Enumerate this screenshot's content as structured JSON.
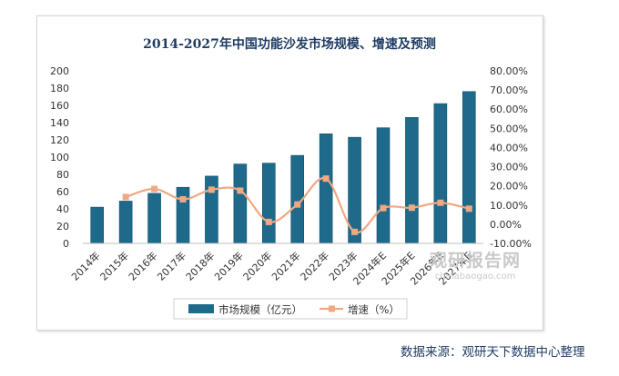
{
  "chart_data": {
    "type": "bar",
    "title": "2014-2027年中国功能沙发市场规模、增速及预测",
    "categories": [
      "2014年",
      "2015年",
      "2016年",
      "2017年",
      "2018年",
      "2019年",
      "2020年",
      "2021年",
      "2022年",
      "2023年",
      "2024年E",
      "2025年E",
      "2026年E",
      "2027年E"
    ],
    "series": [
      {
        "name": "市场规模（亿元）",
        "type": "bar",
        "axis": "left",
        "values": [
          42,
          49,
          58,
          65,
          78,
          92,
          93,
          102,
          127,
          123,
          134,
          146,
          162,
          176
        ]
      },
      {
        "name": "增速（%）",
        "type": "line",
        "axis": "right",
        "values": [
          null,
          14.2,
          18.4,
          13.0,
          18.0,
          17.5,
          1.2,
          10.3,
          23.8,
          -4.0,
          8.4,
          8.6,
          11.2,
          8.1
        ]
      }
    ],
    "left_axis": {
      "min": 0,
      "max": 200,
      "step": 20,
      "tick_labels": [
        "0",
        "20",
        "40",
        "60",
        "80",
        "100",
        "120",
        "140",
        "160",
        "180",
        "200"
      ]
    },
    "right_axis": {
      "min": -10,
      "max": 80,
      "step": 10,
      "tick_labels": [
        "-10.00%",
        "0.00%",
        "10.00%",
        "20.00%",
        "30.00%",
        "40.00%",
        "50.00%",
        "60.00%",
        "70.00%",
        "80.00%"
      ]
    },
    "legend_position": "bottom",
    "grid": false
  },
  "colors": {
    "bar": "#1f6a8a",
    "bar_edge": "#0f4e6a",
    "line": "#f0a882",
    "title": "#1f3c64"
  },
  "source_text": "数据来源：观研天下数据中心整理",
  "watermark": {
    "name": "观研报告网",
    "url": "chinabaogao.com"
  }
}
